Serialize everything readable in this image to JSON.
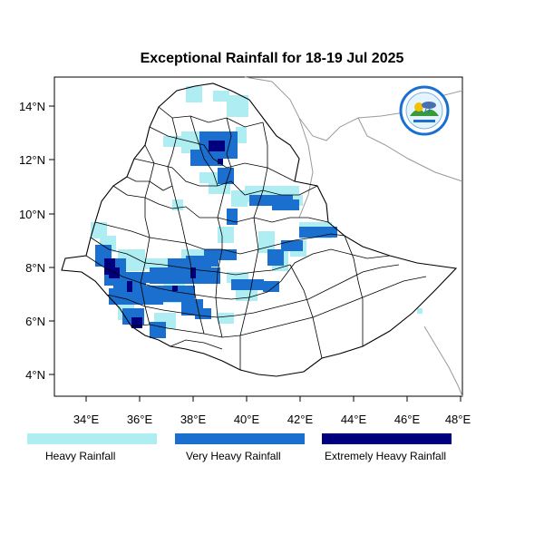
{
  "title": "Exceptional Rainfall for 18-19 Jul 2025",
  "axes": {
    "x_ticks": [
      "34°E",
      "36°E",
      "38°E",
      "40°E",
      "42°E",
      "44°E",
      "46°E",
      "48°E"
    ],
    "y_ticks": [
      "14°N",
      "12°N",
      "10°N",
      "8°N",
      "6°N",
      "4°N"
    ]
  },
  "legend": [
    {
      "label": "Heavy Rainfall",
      "color": "#aeeef2"
    },
    {
      "label": "Very Heavy Rainfall",
      "color": "#1a6fcf"
    },
    {
      "label": "Extremely Heavy Rainfall",
      "color": "#00007f"
    }
  ],
  "colors": {
    "heavy": "#aeeef2",
    "very_heavy": "#1a6fcf",
    "extremely_heavy": "#00007f",
    "border": "#000000",
    "coast": "#9a9a9a"
  },
  "logo": {
    "icon": "ethiopian-meteorology-institute-logo"
  }
}
